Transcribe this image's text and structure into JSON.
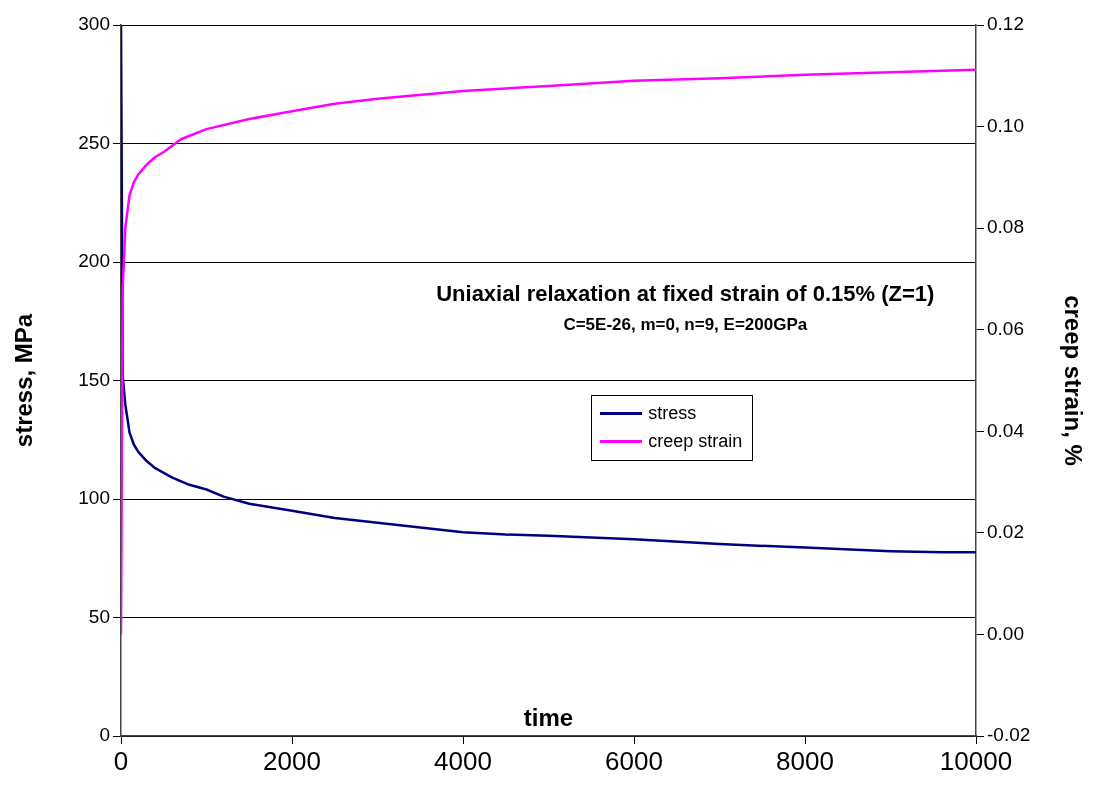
{
  "chart_data": {
    "type": "line",
    "title": "Uniaxial relaxation at fixed strain of 0.15% (Z=1)",
    "subtitle": "C=5E-26, m=0, n=9, E=200GPa",
    "xlabel": "time",
    "ylabel": "stress, MPa",
    "y2label": "creep strain, %",
    "xlim": [
      0,
      10000
    ],
    "xticks": [
      0,
      2000,
      4000,
      6000,
      8000,
      10000
    ],
    "ylim": [
      0,
      300
    ],
    "yticks": [
      0,
      50,
      100,
      150,
      200,
      250,
      300
    ],
    "y2lim": [
      -0.02,
      0.12
    ],
    "y2ticks": [
      {
        "value": -0.02,
        "label": "-0.02"
      },
      {
        "value": 0,
        "label": "0.00"
      },
      {
        "value": 0.02,
        "label": "0.02"
      },
      {
        "value": 0.04,
        "label": "0.04"
      },
      {
        "value": 0.06,
        "label": "0.06"
      },
      {
        "value": 0.08,
        "label": "0.08"
      },
      {
        "value": 0.1,
        "label": "0.10"
      },
      {
        "value": 0.12,
        "label": "0.12"
      }
    ],
    "grid": "y",
    "legend": "center",
    "marker": "none",
    "line_style": "solid",
    "series": [
      {
        "name": "stress",
        "color": "#000080",
        "x": [
          0,
          20,
          50,
          100,
          150,
          200,
          300,
          400,
          500,
          600,
          800,
          1000,
          1200,
          1500,
          2000,
          2500,
          3000,
          3500,
          4000,
          4500,
          5000,
          6000,
          7000,
          8000,
          9000,
          9600,
          10000
        ],
        "values": [
          300,
          152,
          140,
          128,
          123,
          120,
          116,
          113,
          111,
          109,
          106,
          104,
          101,
          98,
          95,
          92,
          90,
          88,
          86,
          85,
          84.5,
          83,
          81,
          79.5,
          78,
          77.5,
          77.5
        ]
      },
      {
        "name": "creep strain",
        "color": "#ff00ff",
        "axis": "y2",
        "x": [
          0,
          20,
          50,
          100,
          150,
          200,
          300,
          400,
          500,
          700,
          1000,
          1500,
          2000,
          2500,
          3000,
          4000,
          5000,
          6000,
          7000,
          8000,
          9000,
          10000
        ],
        "values": [
          0,
          0.068,
          0.08,
          0.0865,
          0.089,
          0.0905,
          0.0925,
          0.094,
          0.095,
          0.0975,
          0.0995,
          0.1015,
          0.103,
          0.1045,
          0.1055,
          0.107,
          0.108,
          0.109,
          0.1095,
          0.1102,
          0.1107,
          0.1112
        ]
      }
    ]
  }
}
